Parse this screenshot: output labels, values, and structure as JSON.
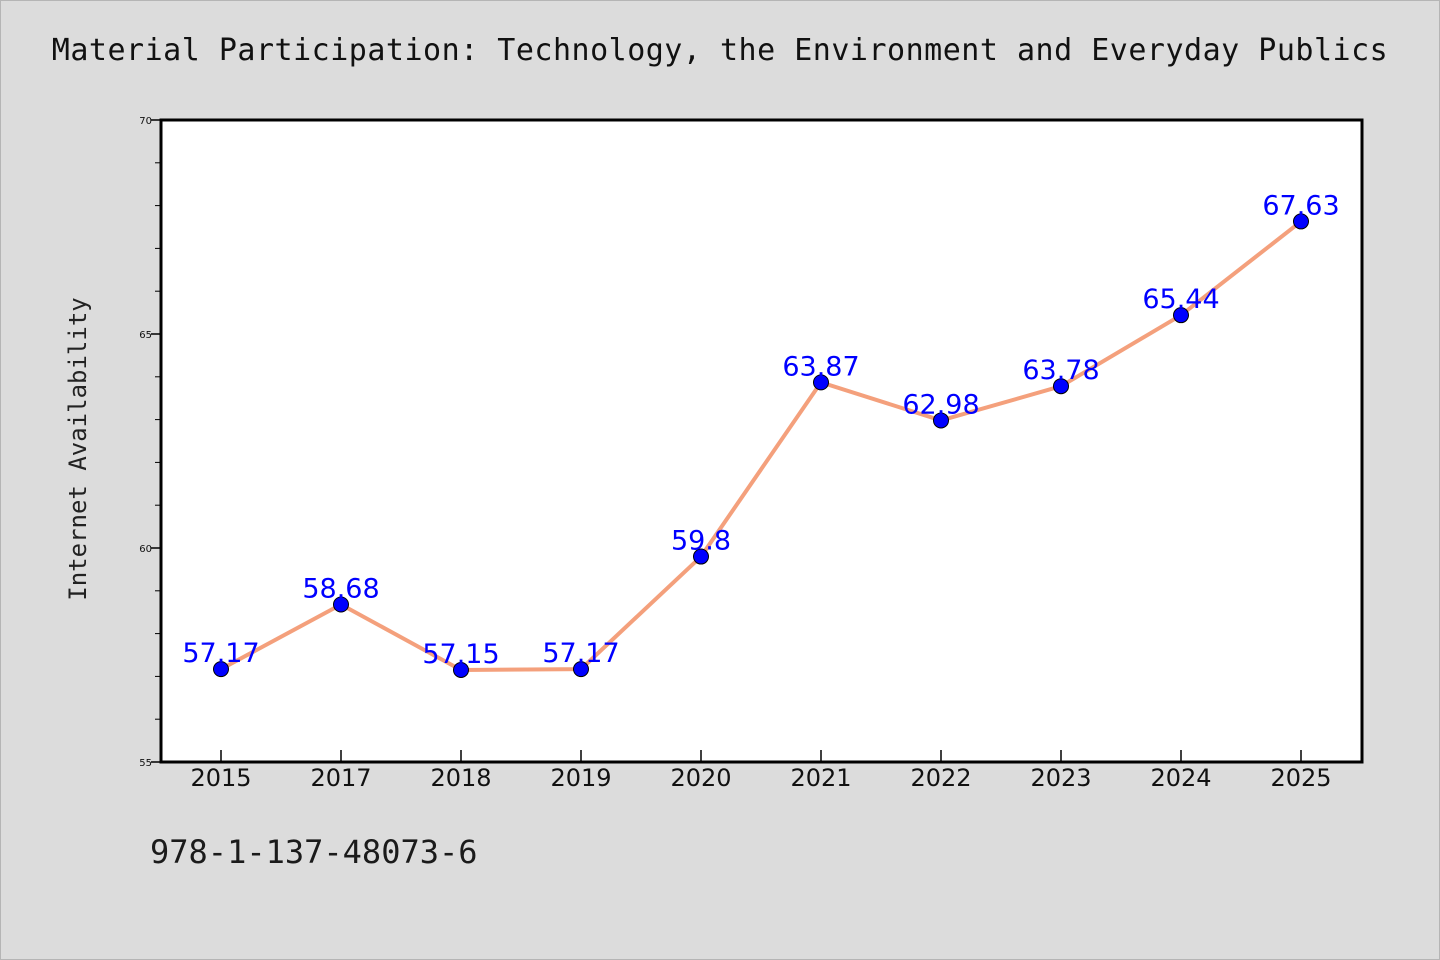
{
  "title": "Material Participation: Technology, the Environment and Everyday Publics",
  "footer": {
    "code": "978-1-137-48073-6"
  },
  "chart_data": {
    "type": "line",
    "title": "Material Participation: Technology, the Environment and Everyday Publics",
    "xlabel": "",
    "ylabel": "Internet Availability",
    "categories": [
      "2015",
      "2017",
      "2018",
      "2019",
      "2020",
      "2021",
      "2022",
      "2023",
      "2024",
      "2025"
    ],
    "values": [
      57.17,
      58.68,
      57.15,
      57.17,
      59.8,
      63.87,
      62.98,
      63.78,
      65.44,
      67.63
    ],
    "data_labels": [
      "57.17",
      "58.68",
      "57.15",
      "57.17",
      "59.8",
      "63.87",
      "62.98",
      "63.78",
      "65.44",
      "67.63"
    ],
    "ylim": [
      55,
      70
    ],
    "yticks": [
      55,
      60,
      65,
      70
    ],
    "grid": false,
    "colors": {
      "line": "#f4a07c",
      "marker": "#0000ff",
      "label": "#0000ff",
      "background": "#dcdcdc",
      "plot_background": "#ffffff"
    }
  }
}
